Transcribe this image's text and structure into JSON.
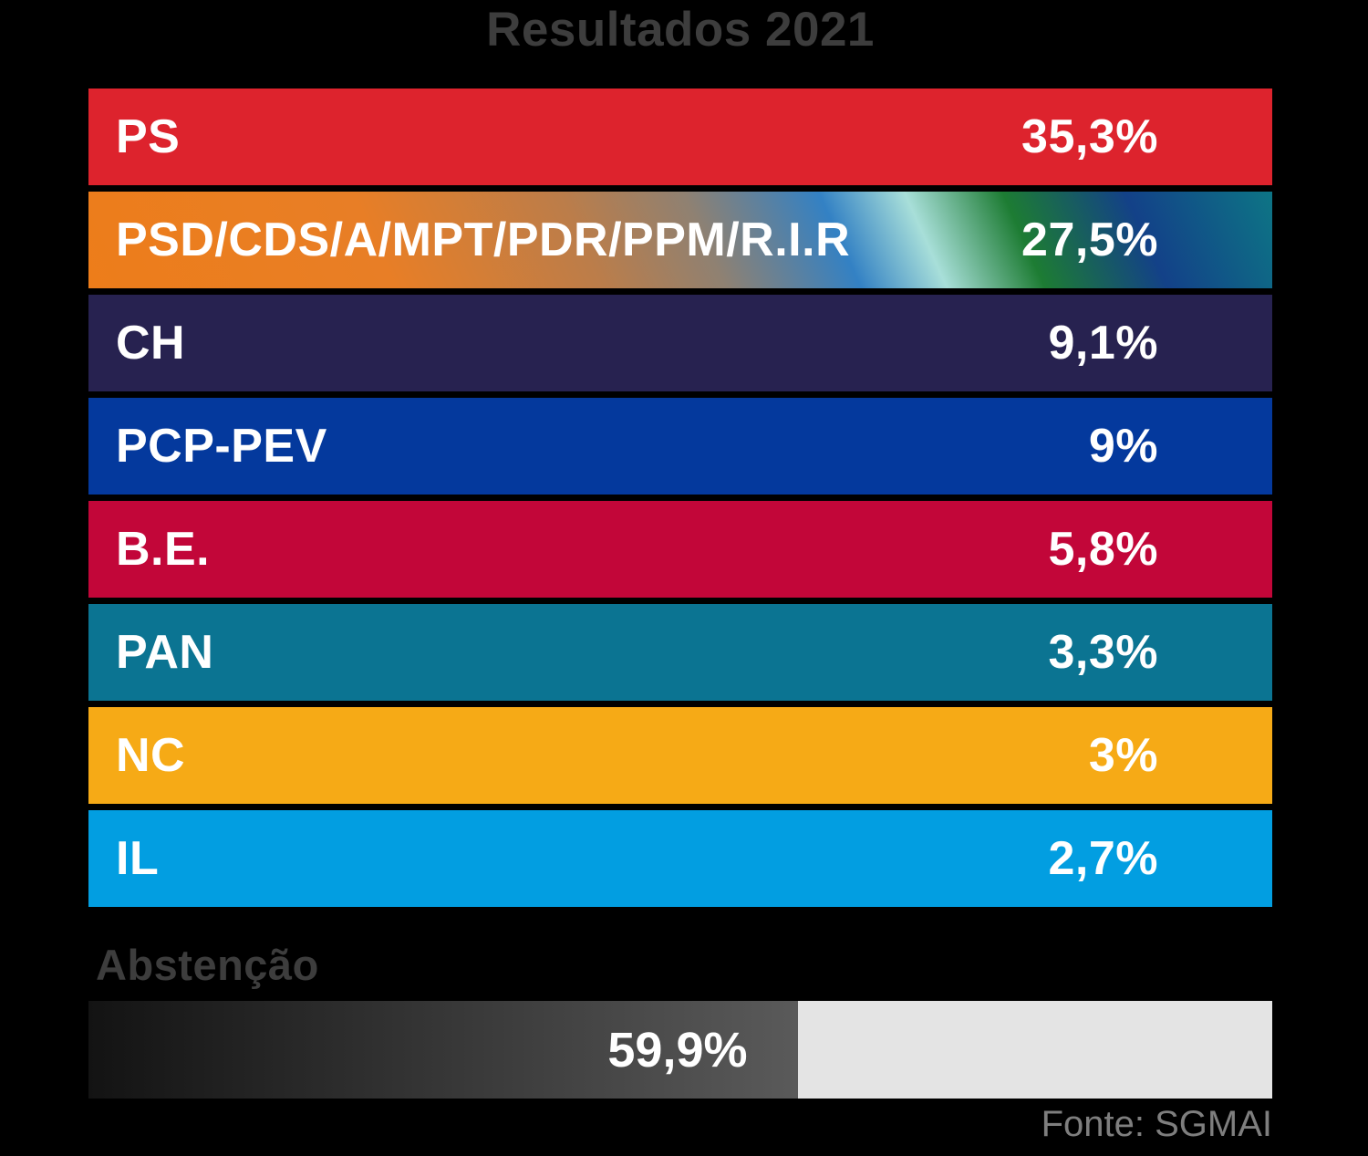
{
  "title": "Resultados 2021",
  "bars": [
    {
      "label": "PS",
      "value_label": "35,3%",
      "color": "#dd232d"
    },
    {
      "label": "PSD/CDS/A/MPT/PDR/PPM/R.I.R",
      "value_label": "27,5%",
      "gradient": {
        "angle": 66,
        "stops": [
          [
            "#ed7d1a",
            "0%"
          ],
          [
            "#e87e26",
            "25%"
          ],
          [
            "#bb7d4a",
            "42%"
          ],
          [
            "#8f8172",
            "52%"
          ],
          [
            "#3381c4",
            "63%"
          ],
          [
            "#a8dfd9",
            "70%"
          ],
          [
            "#1d7c33",
            "78%"
          ],
          [
            "#134188",
            "88%"
          ],
          [
            "#0d7585",
            "100%"
          ]
        ]
      }
    },
    {
      "label": "CH",
      "value_label": "9,1%",
      "color": "#272250"
    },
    {
      "label": "PCP-PEV",
      "value_label": "9%",
      "color": "#04399d"
    },
    {
      "label": "B.E.",
      "value_label": "5,8%",
      "color": "#c20639"
    },
    {
      "label": "PAN",
      "value_label": "3,3%",
      "color": "#0b7492"
    },
    {
      "label": "NC",
      "value_label": "3%",
      "color": "#f6aa16"
    },
    {
      "label": "IL",
      "value_label": "2,7%",
      "color": "#029ee1"
    }
  ],
  "abstention": {
    "label": "Abstenção",
    "value_label": "59,9%",
    "percent": 59.9,
    "fill_gradient": [
      "#131313",
      "#5a5a5a"
    ],
    "track_color": "#e4e4e4"
  },
  "source": "Fonte: SGMAI",
  "colors": {
    "background": "#000000",
    "title_text": "#3d3d3d",
    "bar_text": "#ffffff",
    "source_text": "#7e7e7e"
  },
  "chart_data": {
    "type": "bar",
    "orientation": "horizontal",
    "title": "Resultados 2021",
    "categories": [
      "PS",
      "PSD/CDS/A/MPT/PDR/PPM/R.I.R",
      "CH",
      "PCP-PEV",
      "B.E.",
      "PAN",
      "NC",
      "IL"
    ],
    "values": [
      35.3,
      27.5,
      9.1,
      9,
      5.8,
      3.3,
      3,
      2.7
    ],
    "value_labels": [
      "35,3%",
      "27,5%",
      "9,1%",
      "9%",
      "5,8%",
      "3,3%",
      "3%",
      "2,7%"
    ],
    "abstention": {
      "label": "Abstenção",
      "value": 59.9,
      "value_label": "59,9%"
    },
    "source": "Fonte: SGMAI",
    "xlabel": "",
    "ylabel": "",
    "grid": false,
    "legend": false,
    "note": "party rows drawn full-width as colored bands; only abstention bar is proportional (59.9% of track)"
  }
}
